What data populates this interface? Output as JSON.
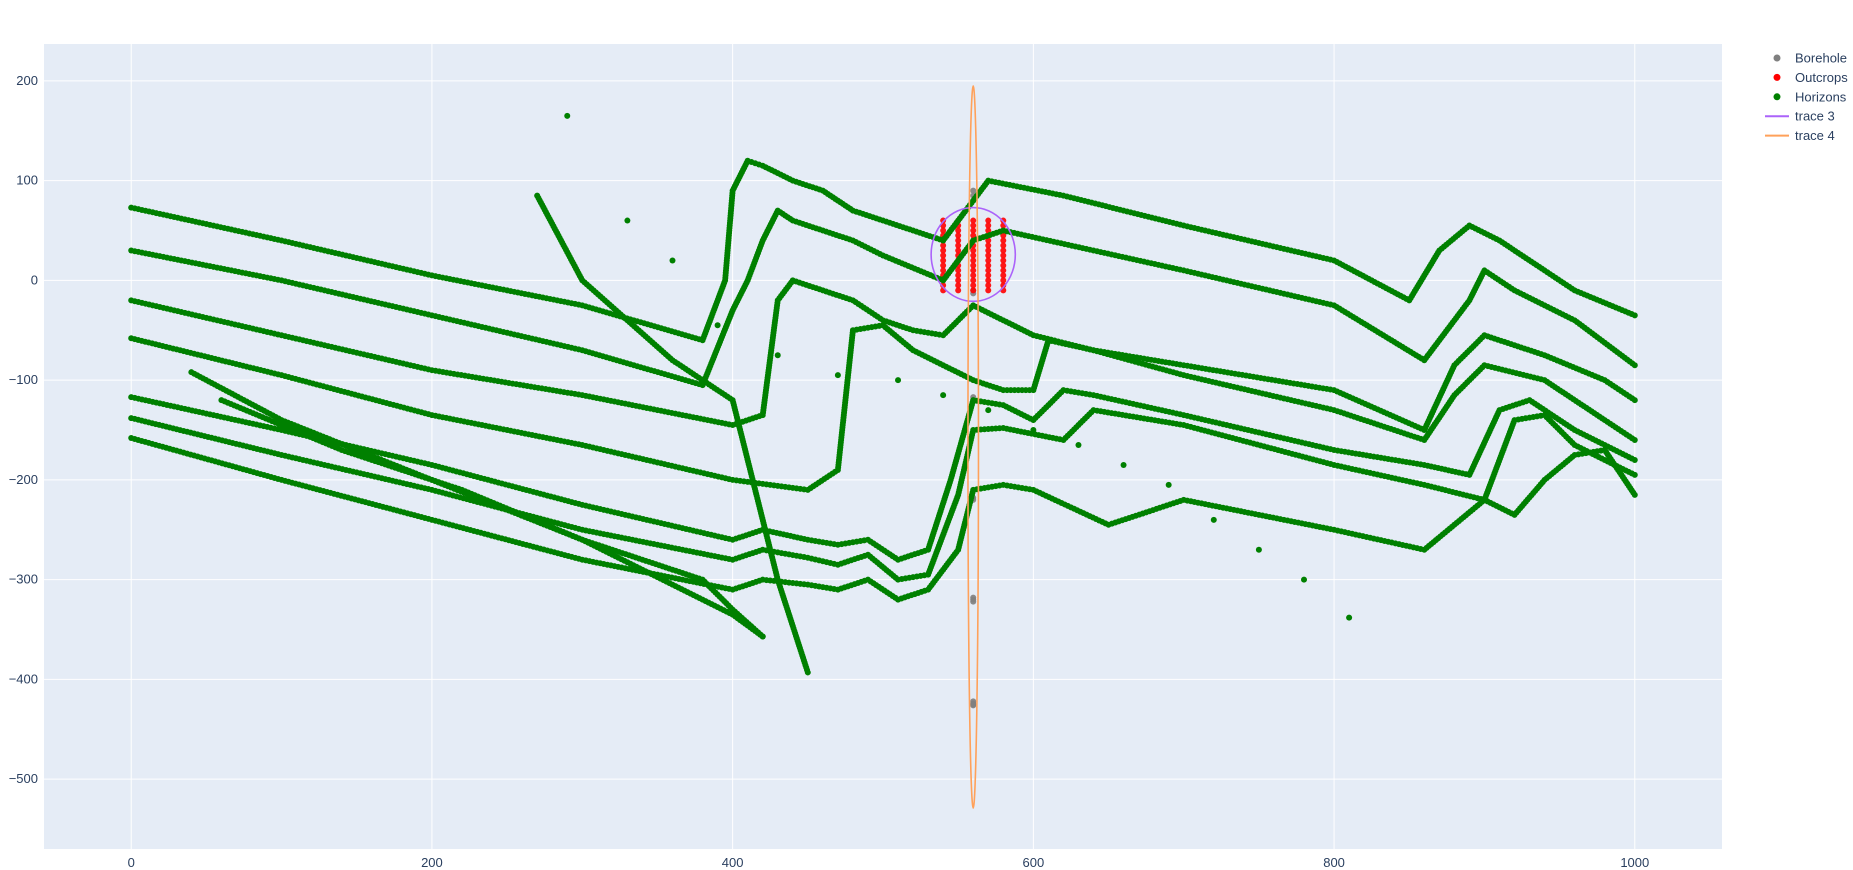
{
  "chart_data": {
    "type": "scatter",
    "title": "",
    "xlabel": "",
    "ylabel": "",
    "xlim": [
      -58,
      1058
    ],
    "ylim": [
      -570,
      237
    ],
    "x_ticks": [
      0,
      200,
      400,
      600,
      800,
      1000
    ],
    "y_ticks": [
      -500,
      -400,
      -300,
      -200,
      -100,
      0,
      100,
      200
    ],
    "x_tick_labels": [
      "0",
      "200",
      "400",
      "600",
      "800",
      "1000"
    ],
    "y_tick_labels": [
      "−500",
      "−400",
      "−300",
      "−200",
      "−100",
      "0",
      "100",
      "200"
    ],
    "grid": true,
    "legend_position": "top-right",
    "colors": {
      "plot_bg": "#e5ecf6",
      "grid": "#ffffff",
      "Borehole": "#808080",
      "Outcrops": "#ff0000",
      "Horizons": "#008000",
      "trace 3": "#ab63fa",
      "trace 4": "#ffa15a"
    },
    "legend": [
      {
        "name": "Borehole",
        "kind": "marker",
        "color": "#808080"
      },
      {
        "name": "Outcrops",
        "kind": "marker",
        "color": "#ff0000"
      },
      {
        "name": "Horizons",
        "kind": "marker",
        "color": "#008000"
      },
      {
        "name": "trace 3",
        "kind": "line",
        "color": "#ab63fa"
      },
      {
        "name": "trace 4",
        "kind": "line",
        "color": "#ffa15a"
      }
    ],
    "series": [
      {
        "name": "Borehole",
        "mode": "markers",
        "color": "#808080",
        "x": [
          560,
          560,
          560,
          560,
          560,
          560,
          560,
          560,
          560,
          560,
          560,
          560,
          560,
          560,
          560,
          560
        ],
        "y": [
          90,
          85,
          -10,
          -13,
          -117,
          -120,
          -218,
          -220,
          -318,
          -320,
          -322,
          -422,
          -424,
          -425,
          -426,
          -425
        ]
      },
      {
        "name": "Outcrops",
        "mode": "markers",
        "color": "#ff0000",
        "x": [
          540,
          540,
          540,
          540,
          540,
          540,
          540,
          540,
          540,
          540,
          540,
          540,
          540,
          540,
          540,
          550,
          550,
          550,
          550,
          550,
          550,
          550,
          550,
          550,
          550,
          550,
          550,
          550,
          550,
          550,
          560,
          560,
          560,
          560,
          560,
          560,
          560,
          560,
          560,
          560,
          560,
          560,
          560,
          560,
          560,
          570,
          570,
          570,
          570,
          570,
          570,
          570,
          570,
          570,
          570,
          570,
          570,
          570,
          570,
          570,
          580,
          580,
          580,
          580,
          580,
          580,
          580,
          580,
          580,
          580,
          580,
          580,
          580,
          580,
          580
        ],
        "y": [
          60,
          55,
          50,
          45,
          40,
          35,
          30,
          25,
          20,
          15,
          10,
          5,
          0,
          -5,
          -10,
          60,
          55,
          50,
          45,
          40,
          35,
          30,
          25,
          20,
          15,
          10,
          5,
          0,
          -5,
          -10,
          60,
          55,
          50,
          45,
          40,
          35,
          30,
          25,
          20,
          15,
          10,
          5,
          0,
          -5,
          -10,
          60,
          55,
          50,
          45,
          40,
          35,
          30,
          25,
          20,
          15,
          10,
          5,
          0,
          -5,
          -10,
          60,
          55,
          50,
          45,
          40,
          35,
          30,
          25,
          20,
          15,
          10,
          5,
          0,
          -5,
          -10
        ]
      },
      {
        "name": "Horizons",
        "mode": "markers",
        "color": "#008000",
        "curves": [
          {
            "x": [
              0,
              100,
              200,
              300,
              380,
              395,
              400,
              410,
              420,
              440,
              460,
              470,
              480,
              500,
              540,
              560,
              570,
              620,
              700,
              800,
              850,
              870,
              890,
              910,
              940,
              960,
              1000
            ],
            "y": [
              73,
              40,
              5,
              -25,
              -60,
              0,
              90,
              120,
              115,
              100,
              90,
              80,
              70,
              60,
              40,
              80,
              100,
              85,
              55,
              20,
              -20,
              30,
              55,
              40,
              10,
              -10,
              -35
            ]
          },
          {
            "x": [
              0,
              100,
              200,
              300,
              380,
              400,
              410,
              420,
              430,
              440,
              460,
              480,
              500,
              540,
              560,
              580,
              640,
              700,
              800,
              860,
              890,
              900,
              920,
              960,
              1000
            ],
            "y": [
              30,
              0,
              -35,
              -70,
              -105,
              -30,
              0,
              40,
              70,
              60,
              50,
              40,
              25,
              0,
              40,
              50,
              30,
              10,
              -25,
              -80,
              -20,
              10,
              -10,
              -40,
              -85
            ]
          },
          {
            "x": [
              0,
              100,
              200,
              300,
              400,
              420,
              430,
              440,
              460,
              480,
              500,
              520,
              540,
              560,
              600,
              640,
              700,
              800,
              860,
              880,
              900,
              940,
              980,
              1000
            ],
            "y": [
              -20,
              -55,
              -90,
              -115,
              -145,
              -135,
              -20,
              0,
              -10,
              -20,
              -40,
              -50,
              -55,
              -25,
              -55,
              -70,
              -85,
              -110,
              -150,
              -85,
              -55,
              -75,
              -100,
              -120
            ]
          },
          {
            "x": [
              0,
              100,
              200,
              300,
              400,
              450,
              470,
              480,
              500,
              520,
              540,
              560,
              580,
              600,
              610,
              640,
              700,
              800,
              860,
              880,
              900,
              940,
              980,
              1000
            ],
            "y": [
              -58,
              -95,
              -135,
              -165,
              -200,
              -210,
              -190,
              -50,
              -45,
              -70,
              -85,
              -100,
              -110,
              -110,
              -60,
              -70,
              -95,
              -130,
              -160,
              -115,
              -85,
              -100,
              -140,
              -160
            ]
          },
          {
            "x": [
              0,
              100,
              200,
              300,
              400,
              420,
              450,
              470,
              490,
              510,
              530,
              545,
              560,
              580,
              600,
              620,
              640,
              700,
              800,
              860,
              890,
              910,
              930,
              960,
              1000
            ],
            "y": [
              -117,
              -150,
              -185,
              -225,
              -260,
              -250,
              -260,
              -265,
              -260,
              -280,
              -270,
              -200,
              -120,
              -125,
              -140,
              -110,
              -115,
              -135,
              -170,
              -185,
              -195,
              -130,
              -120,
              -150,
              -180
            ]
          },
          {
            "x": [
              0,
              100,
              200,
              300,
              400,
              420,
              450,
              470,
              490,
              510,
              530,
              550,
              560,
              580,
              620,
              640,
              700,
              800,
              860,
              900,
              920,
              940,
              960,
              1000
            ],
            "y": [
              -138,
              -175,
              -210,
              -250,
              -280,
              -270,
              -278,
              -285,
              -275,
              -300,
              -295,
              -215,
              -150,
              -148,
              -160,
              -130,
              -145,
              -185,
              -205,
              -220,
              -140,
              -135,
              -165,
              -195
            ]
          },
          {
            "x": [
              0,
              100,
              200,
              300,
              400,
              420,
              450,
              470,
              490,
              510,
              530,
              550,
              560,
              580,
              600,
              650,
              700,
              800,
              860,
              900,
              920,
              940,
              960,
              980,
              1000
            ],
            "y": [
              -158,
              -200,
              -240,
              -280,
              -310,
              -300,
              -305,
              -310,
              -300,
              -320,
              -310,
              -270,
              -210,
              -205,
              -210,
              -245,
              -220,
              -250,
              -270,
              -220,
              -235,
              -200,
              -175,
              -170,
              -215
            ]
          },
          {
            "x": [
              40,
              100,
              200,
              300,
              400,
              420
            ],
            "y": [
              -92,
              -140,
              -200,
              -260,
              -335,
              -357
            ]
          },
          {
            "x": [
              270,
              300,
              360,
              400,
              430,
              450
            ],
            "y": [
              85,
              0,
              -80,
              -120,
              -300,
              -393
            ]
          },
          {
            "x": [
              60,
              140,
              220,
              300,
              380,
              400,
              420
            ],
            "y": [
              -120,
              -170,
              -210,
              -260,
              -300,
              -330,
              -357
            ]
          },
          {
            "x": [
              290,
              330,
              360,
              390,
              430,
              470,
              510,
              540,
              570,
              600,
              630,
              660,
              690,
              720,
              750,
              780,
              810
            ],
            "y": [
              165,
              60,
              20,
              -45,
              -75,
              -95,
              -100,
              -115,
              -130,
              -150,
              -165,
              -185,
              -205,
              -240,
              -270,
              -300,
              -338
            ]
          }
        ]
      },
      {
        "name": "trace 3",
        "mode": "lines",
        "color": "#ab63fa",
        "shape": "ellipse",
        "center_x": 560,
        "center_y": 26,
        "radius_x": 28,
        "radius_y": 47
      },
      {
        "name": "trace 4",
        "mode": "lines",
        "color": "#ffa15a",
        "shape": "ellipse",
        "center_x": 560,
        "center_y": -167,
        "radius_x": 3.5,
        "radius_y": 362
      }
    ]
  }
}
